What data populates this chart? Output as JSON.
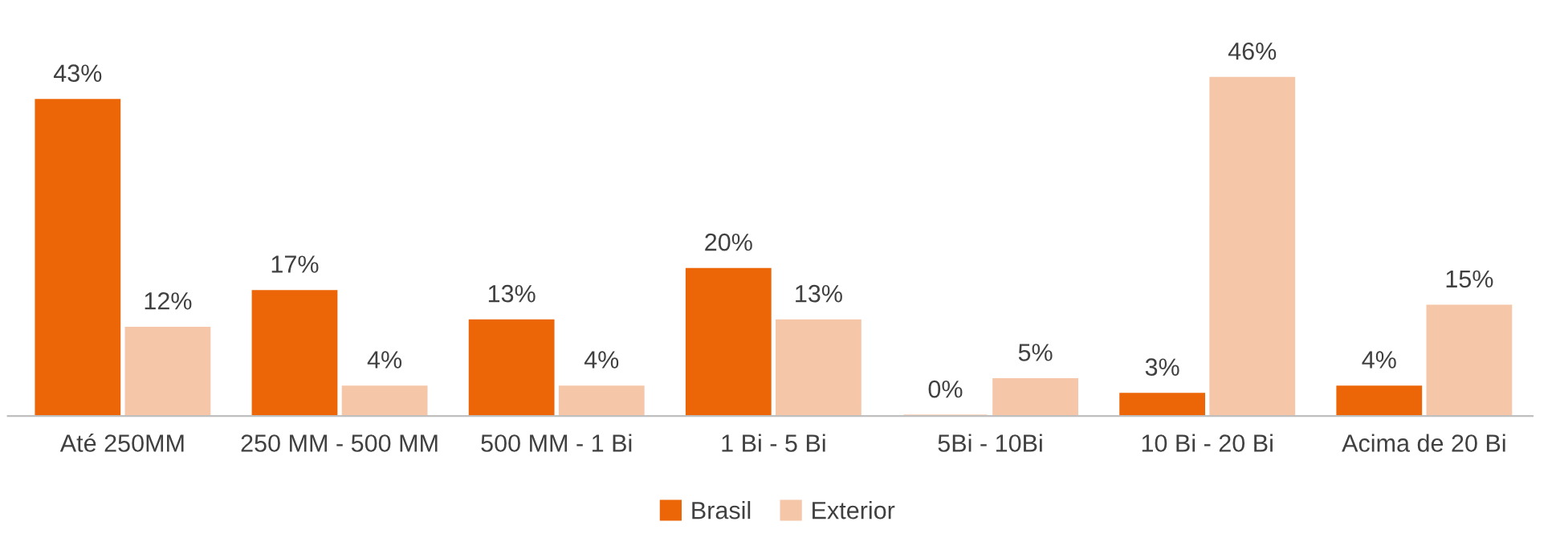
{
  "chart_data": {
    "type": "bar",
    "categories": [
      "Até 250MM",
      "250 MM - 500 MM",
      "500 MM - 1 Bi",
      "1 Bi - 5 Bi",
      "5Bi - 10Bi",
      "10 Bi - 20 Bi",
      "Acima de 20 Bi"
    ],
    "series": [
      {
        "name": "Brasil",
        "color": "#ec6608",
        "values": [
          43,
          17,
          13,
          20,
          0,
          3,
          4
        ],
        "value_labels": [
          "43%",
          "17%",
          "13%",
          "20%",
          "0%",
          "3%",
          "4%"
        ]
      },
      {
        "name": "Exterior",
        "color": "#f6c6a8",
        "values": [
          12,
          4,
          4,
          13,
          5,
          46,
          15
        ],
        "value_labels": [
          "12%",
          "4%",
          "4%",
          "13%",
          "5%",
          "46%",
          "15%"
        ]
      }
    ],
    "legend": "bottom",
    "grid": false
  }
}
